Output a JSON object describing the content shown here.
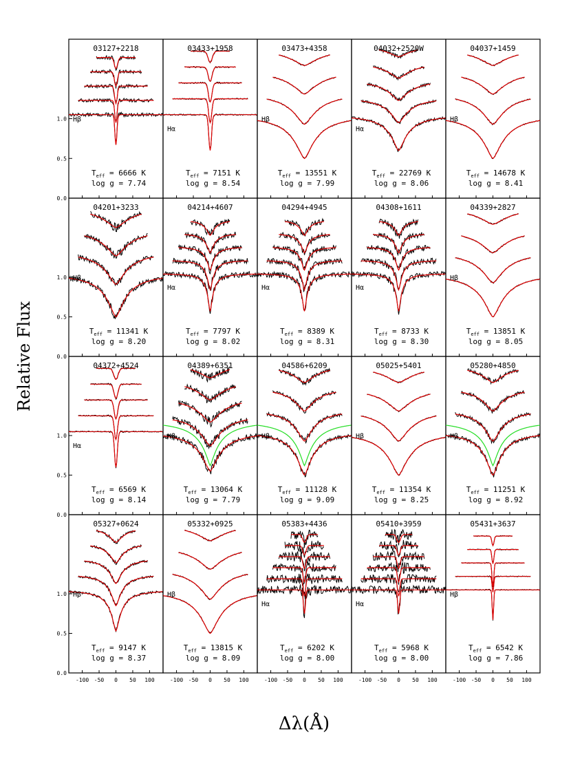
{
  "chart_data": {
    "type": "line",
    "ylabel": "Relative Flux",
    "xlabel": "Δλ(Å)",
    "xlim": [
      -140,
      140
    ],
    "ylim": [
      0,
      2.0
    ],
    "yticks": [
      0.0,
      0.5,
      1.0
    ],
    "xticks": [
      -100,
      -50,
      0,
      50,
      100
    ],
    "colors": {
      "observed": "#000000",
      "model": "#e00000",
      "alt_model": "#22dd22"
    },
    "panels": [
      {
        "name": "03127+2218",
        "teff": "6666 K",
        "logg": "7.74",
        "line": "Hβ",
        "style": "hbeta_cool"
      },
      {
        "name": "03433+1958",
        "teff": "7151 K",
        "logg": "8.54",
        "line": "Hα",
        "style": "halpha"
      },
      {
        "name": "03473+4358",
        "teff": "13551 K",
        "logg": "7.99",
        "line": "Hβ",
        "style": "hot"
      },
      {
        "name": "04032+2520W",
        "teff": "22769 K",
        "logg": "8.06",
        "line": "Hα",
        "style": "hot_halpha"
      },
      {
        "name": "04037+1459",
        "teff": "14678 K",
        "logg": "8.41",
        "line": "Hβ",
        "style": "hot"
      },
      {
        "name": "04201+3233",
        "teff": "11341 K",
        "logg": "8.20",
        "line": "Hβ",
        "style": "hot_noisy"
      },
      {
        "name": "04214+4607",
        "teff": "7797 K",
        "logg": "8.02",
        "line": "Hα",
        "style": "halpha_noisy"
      },
      {
        "name": "04294+4945",
        "teff": "8389 K",
        "logg": "8.31",
        "line": "Hα",
        "style": "halpha_noisy"
      },
      {
        "name": "04308+1611",
        "teff": "8733 K",
        "logg": "8.30",
        "line": "Hα",
        "style": "halpha_noisy"
      },
      {
        "name": "04339+2827",
        "teff": "13851 K",
        "logg": "8.05",
        "line": "Hβ",
        "style": "hot"
      },
      {
        "name": "04372+4524",
        "teff": "6569 K",
        "logg": "8.14",
        "line": "Hα",
        "style": "halpha"
      },
      {
        "name": "04389+6351",
        "teff": "13064 K",
        "logg": "7.79",
        "line": "Hβ",
        "style": "hot_green_noisy"
      },
      {
        "name": "04586+6209",
        "teff": "11128 K",
        "logg": "9.09",
        "line": "Hβ",
        "style": "hot_green"
      },
      {
        "name": "05025+5401",
        "teff": "11354 K",
        "logg": "8.25",
        "line": "Hβ",
        "style": "hot"
      },
      {
        "name": "05280+4850",
        "teff": "11251 K",
        "logg": "8.92",
        "line": "Hβ",
        "style": "hot_green"
      },
      {
        "name": "05327+0624",
        "teff": "9147 K",
        "logg": "8.37",
        "line": "Hβ",
        "style": "warm"
      },
      {
        "name": "05332+0925",
        "teff": "13815 K",
        "logg": "8.09",
        "line": "Hβ",
        "style": "hot"
      },
      {
        "name": "05383+4436",
        "teff": "6202 K",
        "logg": "8.00",
        "line": "Hα",
        "style": "halpha_verynoisy"
      },
      {
        "name": "05410+3959",
        "teff": "5968 K",
        "logg": "8.00",
        "line": "Hα",
        "style": "halpha_verynoisy"
      },
      {
        "name": "05431+3637",
        "teff": "6542 K",
        "logg": "7.86",
        "line": "Hβ",
        "style": "cool_sharp"
      }
    ]
  }
}
